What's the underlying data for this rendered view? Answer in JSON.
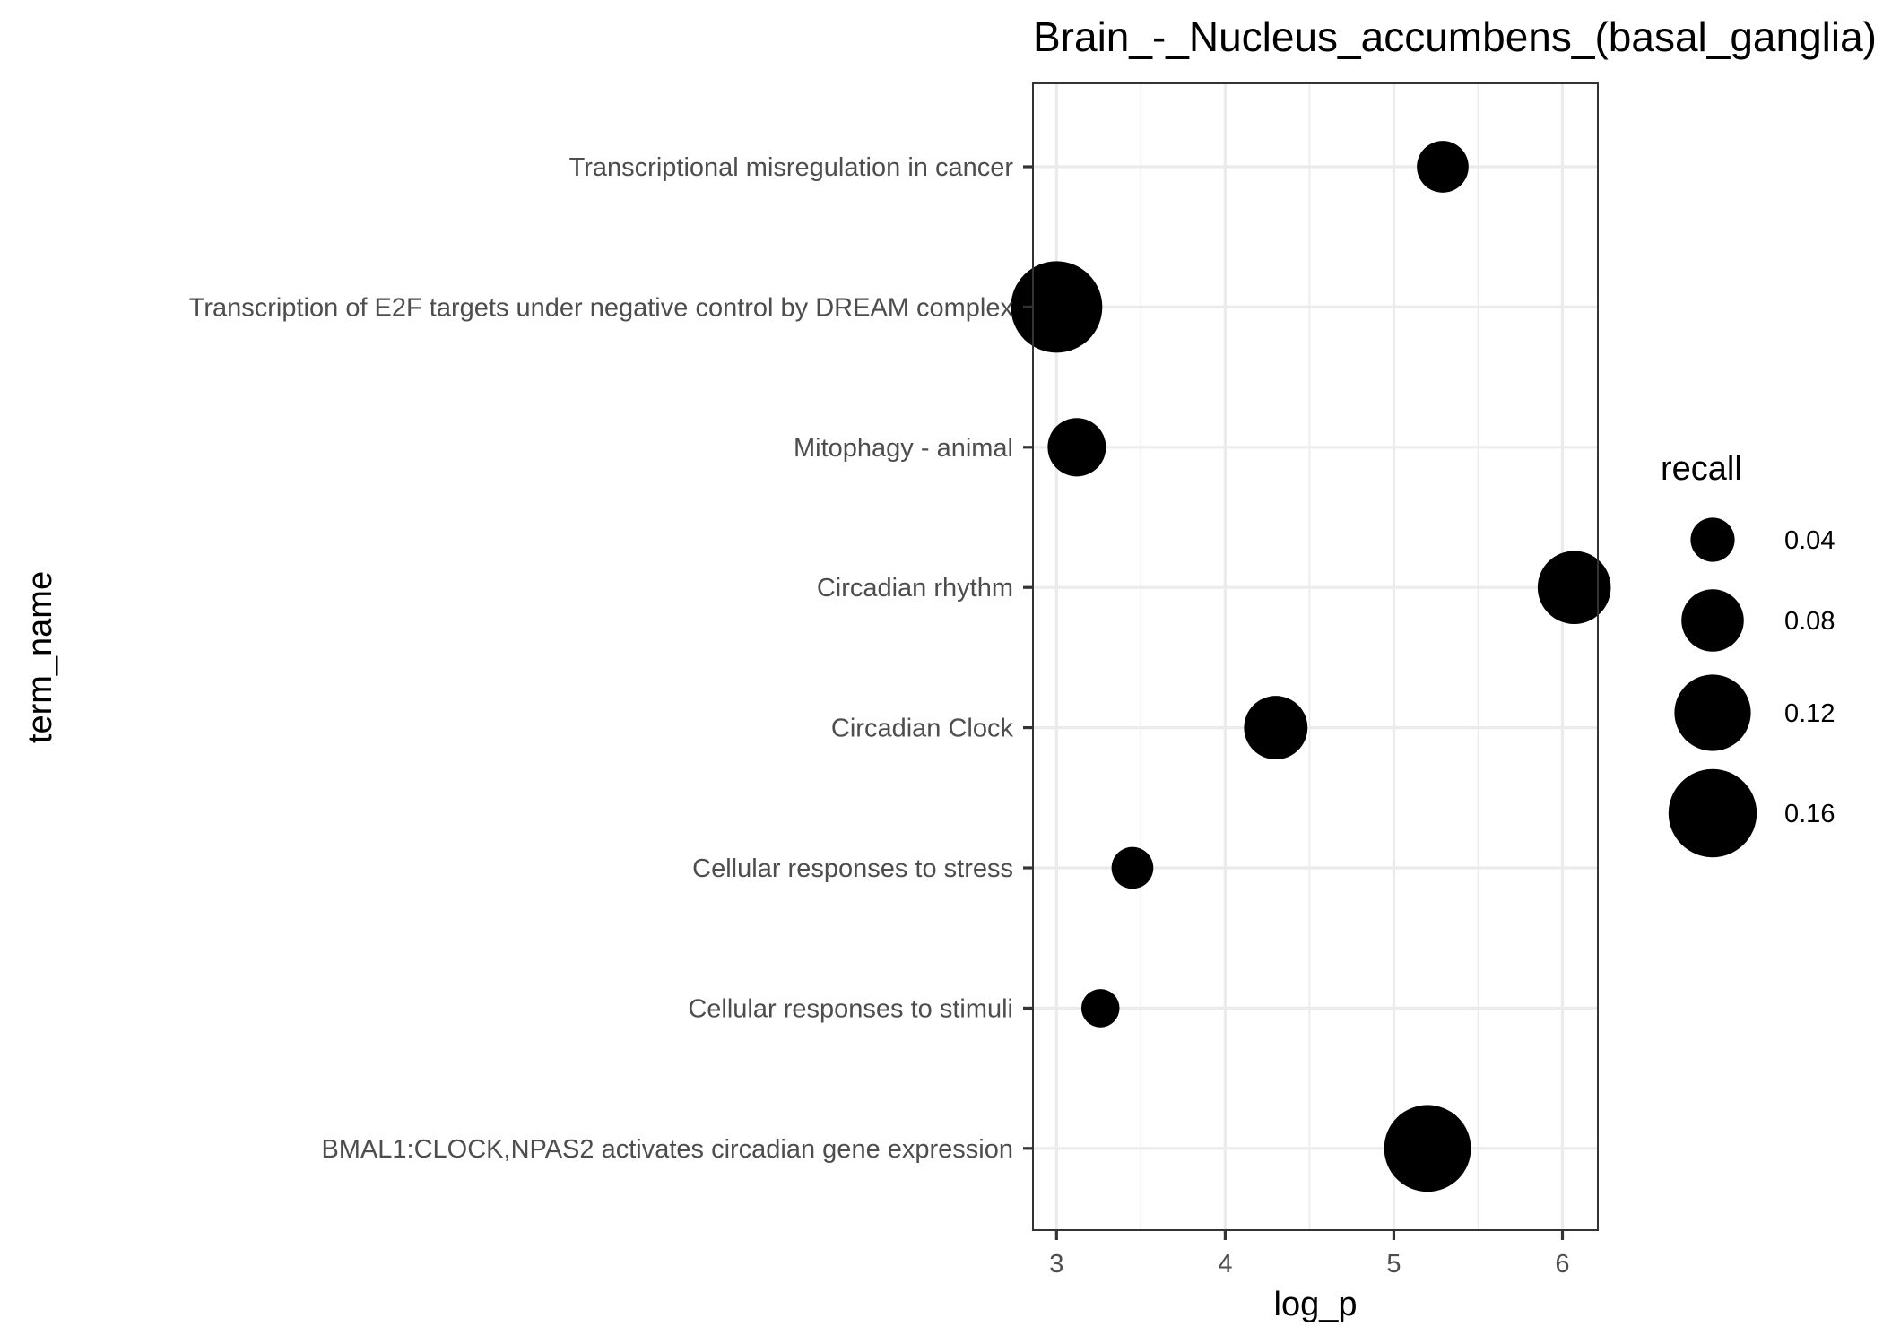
{
  "chart_data": {
    "type": "scatter",
    "title": "Brain_-_Nucleus_accumbens_(basal_ganglia)",
    "xlabel": "log_p",
    "ylabel": "term_name",
    "xlim": [
      2.86,
      6.21
    ],
    "x_ticks": [
      3,
      4,
      5,
      6
    ],
    "grid": true,
    "categories": [
      "Transcriptional misregulation in cancer",
      "Transcription of E2F targets under negative control by DREAM complex",
      "Mitophagy - animal",
      "Circadian rhythm",
      "Circadian Clock",
      "Cellular responses to stress",
      "Cellular responses to stimuli",
      "BMAL1:CLOCK,NPAS2 activates circadian gene expression"
    ],
    "points": [
      {
        "term": "Transcriptional misregulation in cancer",
        "x": 5.29,
        "recall": 0.055
      },
      {
        "term": "Transcription of E2F targets under negative control by DREAM complex",
        "x": 3.0,
        "recall": 0.172
      },
      {
        "term": "Mitophagy - animal",
        "x": 3.12,
        "recall": 0.07
      },
      {
        "term": "Circadian rhythm",
        "x": 6.07,
        "recall": 0.11
      },
      {
        "term": "Circadian Clock",
        "x": 4.3,
        "recall": 0.083
      },
      {
        "term": "Cellular responses to stress",
        "x": 3.45,
        "recall": 0.036
      },
      {
        "term": "Cellular responses to stimuli",
        "x": 3.26,
        "recall": 0.03
      },
      {
        "term": "BMAL1:CLOCK,NPAS2 activates circadian gene expression",
        "x": 5.2,
        "recall": 0.155
      }
    ],
    "legend": {
      "title": "recall",
      "position": "right",
      "breaks": [
        0.04,
        0.08,
        0.12,
        0.16
      ],
      "labels": [
        "0.04",
        "0.08",
        "0.12",
        "0.16"
      ]
    },
    "point_color": "#000000"
  }
}
